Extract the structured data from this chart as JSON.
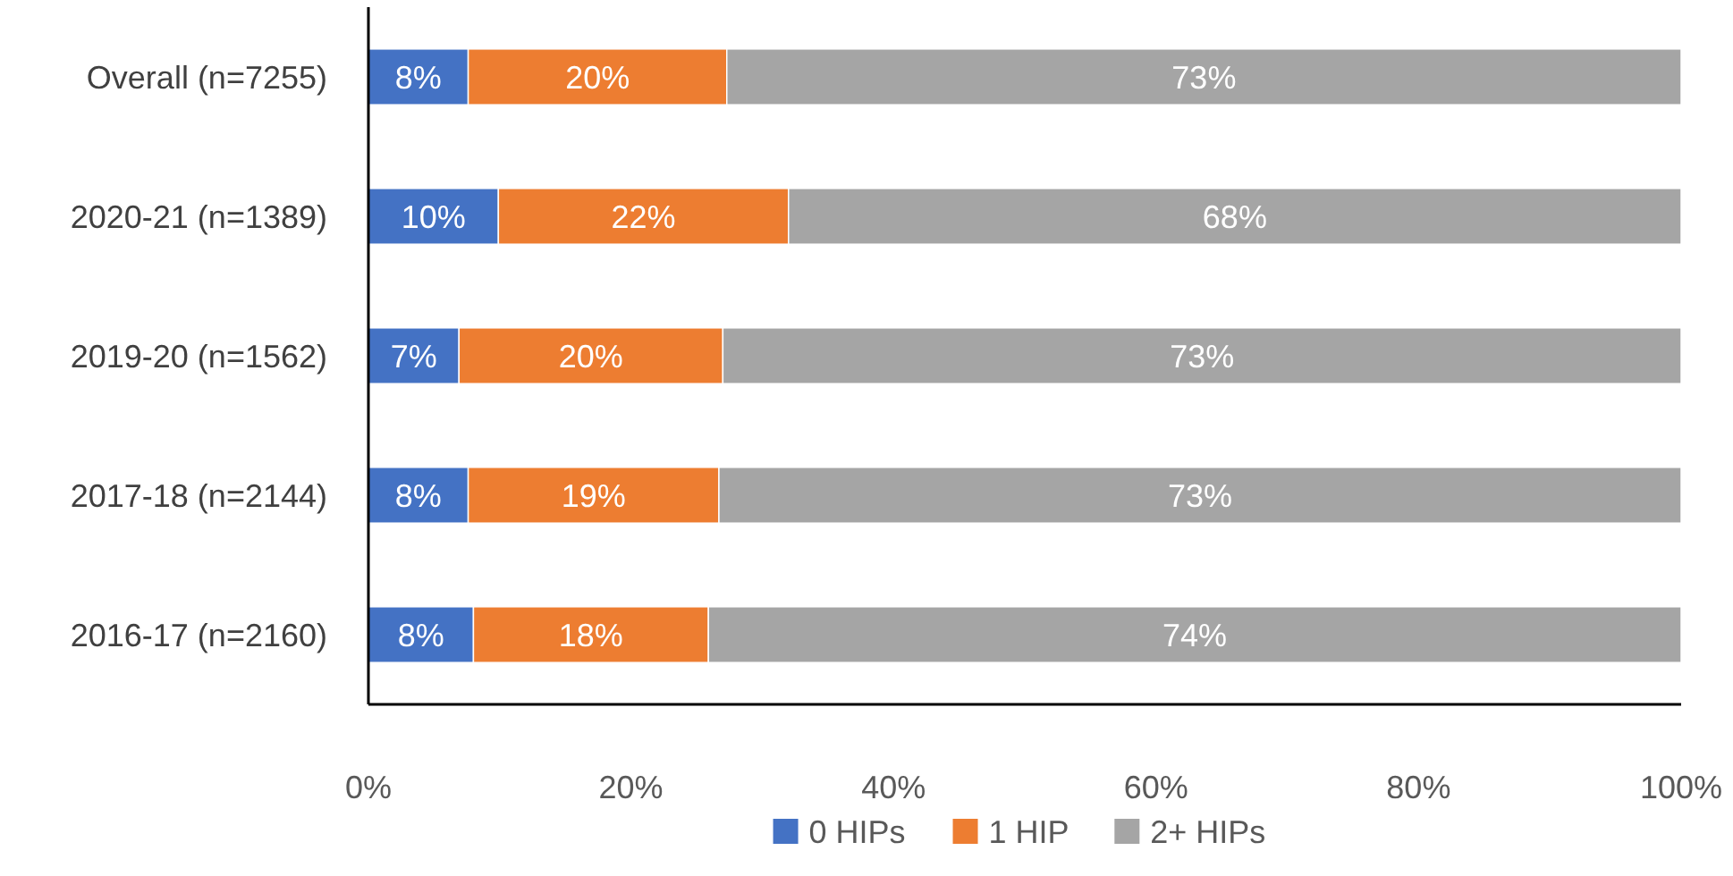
{
  "chart_data": {
    "type": "bar",
    "orientation": "horizontal",
    "stacked": true,
    "categories": [
      "Overall (n=7255)",
      "2020-21 (n=1389)",
      "2019-20 (n=1562)",
      "2017-18 (n=2144)",
      "2016-17 (n=2160)"
    ],
    "series": [
      {
        "name": "0 HIPs",
        "color": "#4472c4",
        "values": [
          7.6,
          9.9,
          6.9,
          7.6,
          8.0
        ],
        "value_labels": [
          "8%",
          "10%",
          "7%",
          "8%",
          "8%"
        ]
      },
      {
        "name": "1 HIP",
        "color": "#ed7d31",
        "values": [
          19.7,
          22.1,
          20.1,
          19.1,
          17.9
        ],
        "value_labels": [
          "20%",
          "22%",
          "20%",
          "19%",
          "18%"
        ]
      },
      {
        "name": "2+ HIPs",
        "color": "#a5a5a5",
        "values": [
          72.7,
          68.0,
          73.0,
          73.3,
          74.1
        ],
        "value_labels": [
          "73%",
          "68%",
          "73%",
          "73%",
          "74%"
        ]
      }
    ],
    "xlim": [
      0,
      100
    ],
    "xticks": [
      {
        "value": 0,
        "label": "0%"
      },
      {
        "value": 20,
        "label": "20%"
      },
      {
        "value": 40,
        "label": "40%"
      },
      {
        "value": 60,
        "label": "60%"
      },
      {
        "value": 80,
        "label": "80%"
      },
      {
        "value": 100,
        "label": "100%"
      }
    ],
    "grid": false,
    "legend": "bottom"
  }
}
